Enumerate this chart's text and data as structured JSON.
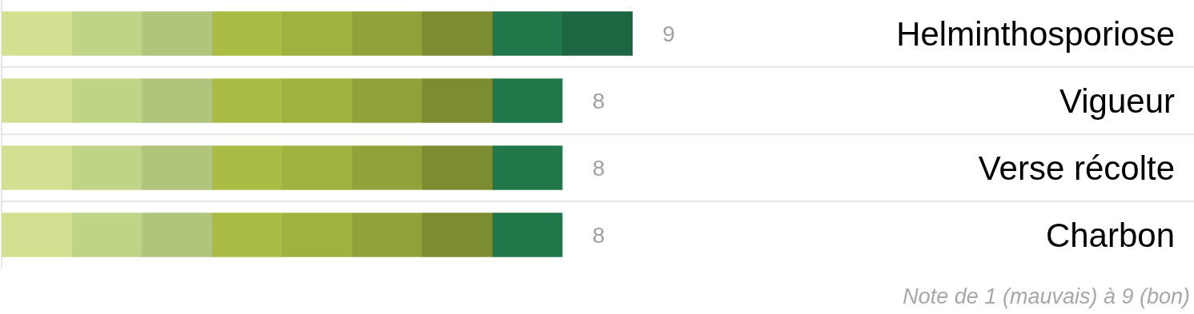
{
  "chart_data": {
    "type": "bar",
    "orientation": "horizontal",
    "categories": [
      "Helminthosporiose",
      "Vigueur",
      "Verse récolte",
      "Charbon"
    ],
    "values": [
      9,
      8,
      8,
      8
    ],
    "colors": [
      "#1d6642",
      "#1f774a",
      "#1f774a",
      "#1f774a"
    ],
    "data_labels": true,
    "annotations": [
      "Note de 1 (mauvais) à 9 (bon)"
    ]
  }
}
